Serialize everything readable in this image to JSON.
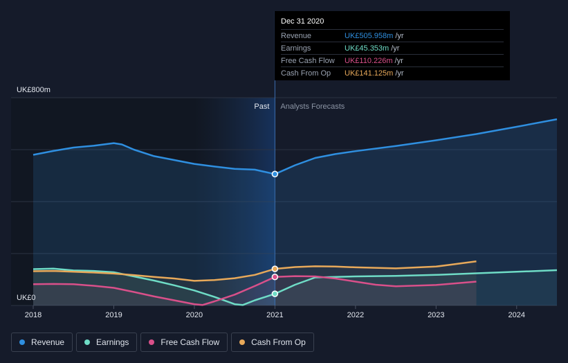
{
  "chart_data": {
    "type": "line",
    "y_axis": {
      "top_label": "UK£800m",
      "bottom_label": "UK£0",
      "ylim": [
        0,
        800
      ],
      "gridlines": [
        0,
        200,
        400,
        600,
        800
      ]
    },
    "x_axis": {
      "ticks": [
        "2018",
        "2019",
        "2020",
        "2021",
        "2022",
        "2023",
        "2024"
      ],
      "xlim": [
        2018.0,
        2024.5
      ]
    },
    "past_label": "Past",
    "forecast_label": "Analysts Forecasts",
    "divider_x": 2021.0,
    "series": [
      {
        "name": "Revenue",
        "key": "revenue",
        "color": "#2f8fe0",
        "past": [
          [
            2018.0,
            580
          ],
          [
            2018.25,
            595
          ],
          [
            2018.5,
            608
          ],
          [
            2018.75,
            615
          ],
          [
            2019.0,
            625
          ],
          [
            2019.1,
            620
          ],
          [
            2019.25,
            600
          ],
          [
            2019.5,
            575
          ],
          [
            2019.75,
            560
          ],
          [
            2020.0,
            545
          ],
          [
            2020.25,
            535
          ],
          [
            2020.5,
            526
          ],
          [
            2020.75,
            523
          ],
          [
            2021.0,
            506
          ]
        ],
        "forecast": [
          [
            2021.0,
            506
          ],
          [
            2021.25,
            540
          ],
          [
            2021.5,
            568
          ],
          [
            2021.75,
            583
          ],
          [
            2022.0,
            594
          ],
          [
            2022.5,
            614
          ],
          [
            2023.0,
            636
          ],
          [
            2023.5,
            660
          ],
          [
            2024.0,
            688
          ],
          [
            2024.5,
            717
          ]
        ]
      },
      {
        "name": "Earnings",
        "key": "earnings",
        "color": "#6fdcc6",
        "past": [
          [
            2018.0,
            140
          ],
          [
            2018.25,
            142
          ],
          [
            2018.5,
            135
          ],
          [
            2018.75,
            133
          ],
          [
            2019.0,
            128
          ],
          [
            2019.25,
            112
          ],
          [
            2019.5,
            96
          ],
          [
            2019.75,
            78
          ],
          [
            2020.0,
            58
          ],
          [
            2020.25,
            33
          ],
          [
            2020.5,
            5
          ],
          [
            2020.6,
            2
          ],
          [
            2020.75,
            20
          ],
          [
            2021.0,
            45
          ]
        ],
        "forecast": [
          [
            2021.0,
            45
          ],
          [
            2021.25,
            80
          ],
          [
            2021.5,
            108
          ],
          [
            2021.75,
            110
          ],
          [
            2022.0,
            112
          ],
          [
            2022.5,
            114
          ],
          [
            2023.0,
            118
          ],
          [
            2023.5,
            124
          ],
          [
            2024.0,
            130
          ],
          [
            2024.5,
            136
          ]
        ]
      },
      {
        "name": "Free Cash Flow",
        "key": "fcf",
        "color": "#d9508a",
        "past": [
          [
            2018.0,
            82
          ],
          [
            2018.25,
            83
          ],
          [
            2018.5,
            82
          ],
          [
            2018.75,
            76
          ],
          [
            2019.0,
            68
          ],
          [
            2019.25,
            52
          ],
          [
            2019.5,
            35
          ],
          [
            2019.75,
            20
          ],
          [
            2020.0,
            5
          ],
          [
            2020.1,
            2
          ],
          [
            2020.25,
            16
          ],
          [
            2020.5,
            42
          ],
          [
            2020.75,
            75
          ],
          [
            2021.0,
            110
          ]
        ],
        "forecast": [
          [
            2021.0,
            110
          ],
          [
            2021.25,
            113
          ],
          [
            2021.5,
            112
          ],
          [
            2021.75,
            104
          ],
          [
            2022.0,
            92
          ],
          [
            2022.25,
            80
          ],
          [
            2022.5,
            74
          ],
          [
            2023.0,
            79
          ],
          [
            2023.5,
            92
          ]
        ]
      },
      {
        "name": "Cash From Op",
        "key": "cfo",
        "color": "#e8a95a",
        "past": [
          [
            2018.0,
            132
          ],
          [
            2018.25,
            133
          ],
          [
            2018.5,
            130
          ],
          [
            2018.75,
            127
          ],
          [
            2019.0,
            123
          ],
          [
            2019.25,
            117
          ],
          [
            2019.5,
            110
          ],
          [
            2019.75,
            104
          ],
          [
            2020.0,
            95
          ],
          [
            2020.25,
            98
          ],
          [
            2020.5,
            105
          ],
          [
            2020.75,
            118
          ],
          [
            2021.0,
            141
          ]
        ],
        "forecast": [
          [
            2021.0,
            141
          ],
          [
            2021.25,
            148
          ],
          [
            2021.5,
            151
          ],
          [
            2021.75,
            150
          ],
          [
            2022.0,
            147
          ],
          [
            2022.5,
            143
          ],
          [
            2023.0,
            150
          ],
          [
            2023.5,
            170
          ]
        ]
      }
    ],
    "highlight_x": 2021.0
  },
  "tooltip": {
    "title": "Dec 31 2020",
    "rows": [
      {
        "label": "Revenue",
        "value": "UK£505.958m",
        "unit": "/yr",
        "color": "#2f8fe0"
      },
      {
        "label": "Earnings",
        "value": "UK£45.353m",
        "unit": "/yr",
        "color": "#6fdcc6"
      },
      {
        "label": "Free Cash Flow",
        "value": "UK£110.226m",
        "unit": "/yr",
        "color": "#d9508a"
      },
      {
        "label": "Cash From Op",
        "value": "UK£141.125m",
        "unit": "/yr",
        "color": "#e8a95a"
      }
    ]
  },
  "legend": [
    {
      "label": "Revenue",
      "color": "#2f8fe0"
    },
    {
      "label": "Earnings",
      "color": "#6fdcc6"
    },
    {
      "label": "Free Cash Flow",
      "color": "#d9508a"
    },
    {
      "label": "Cash From Op",
      "color": "#e8a95a"
    }
  ]
}
